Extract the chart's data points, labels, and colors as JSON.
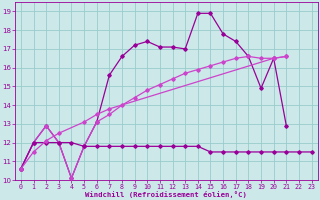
{
  "xlabel": "Windchill (Refroidissement éolien,°C)",
  "xlim": [
    -0.5,
    23.5
  ],
  "ylim": [
    10,
    19.5
  ],
  "xticks": [
    0,
    1,
    2,
    3,
    4,
    5,
    6,
    7,
    8,
    9,
    10,
    11,
    12,
    13,
    14,
    15,
    16,
    17,
    18,
    19,
    20,
    21,
    22,
    23
  ],
  "yticks": [
    10,
    11,
    12,
    13,
    14,
    15,
    16,
    17,
    18,
    19
  ],
  "bg_color": "#cce8e8",
  "grid_color": "#99cccc",
  "line_color1": "#990099",
  "line_color2": "#cc44cc",
  "s1_x": [
    0,
    1,
    2,
    3,
    4,
    5,
    6,
    7,
    8,
    9,
    10,
    11,
    12,
    13,
    14,
    15,
    16,
    17,
    18,
    19,
    20,
    21
  ],
  "s1_y": [
    10.6,
    12.0,
    12.9,
    12.0,
    10.1,
    11.8,
    13.1,
    15.6,
    16.6,
    17.2,
    17.4,
    17.1,
    17.1,
    17.0,
    18.9,
    18.9,
    17.8,
    17.4,
    16.6,
    14.9,
    16.5,
    12.9
  ],
  "s2_x": [
    0,
    1,
    2,
    3,
    4,
    5,
    6,
    7,
    8,
    9,
    10,
    11,
    12,
    13,
    14,
    15,
    16,
    17,
    18,
    19,
    20,
    21
  ],
  "s2_y": [
    10.6,
    12.0,
    12.9,
    12.0,
    10.1,
    11.8,
    13.1,
    13.5,
    14.0,
    14.4,
    14.8,
    15.1,
    15.4,
    15.7,
    15.9,
    16.1,
    16.3,
    16.5,
    16.6,
    16.5,
    16.5,
    16.6
  ],
  "s3_x": [
    0,
    1,
    2,
    3,
    4,
    5,
    6,
    7,
    8,
    9,
    10,
    11,
    12,
    13,
    14,
    15,
    16,
    17,
    18,
    19,
    20,
    21,
    22,
    23
  ],
  "s3_y": [
    10.6,
    12.0,
    12.0,
    12.0,
    12.0,
    11.8,
    11.8,
    11.8,
    11.8,
    11.8,
    11.8,
    11.8,
    11.8,
    11.8,
    11.8,
    11.5,
    11.5,
    11.5,
    11.5,
    11.5,
    11.5,
    11.5,
    11.5,
    11.5
  ],
  "s4_x": [
    0,
    1,
    2,
    3,
    5,
    6,
    7,
    20,
    21
  ],
  "s4_y": [
    10.6,
    11.5,
    12.1,
    12.5,
    13.1,
    13.5,
    13.8,
    16.5,
    16.6
  ]
}
